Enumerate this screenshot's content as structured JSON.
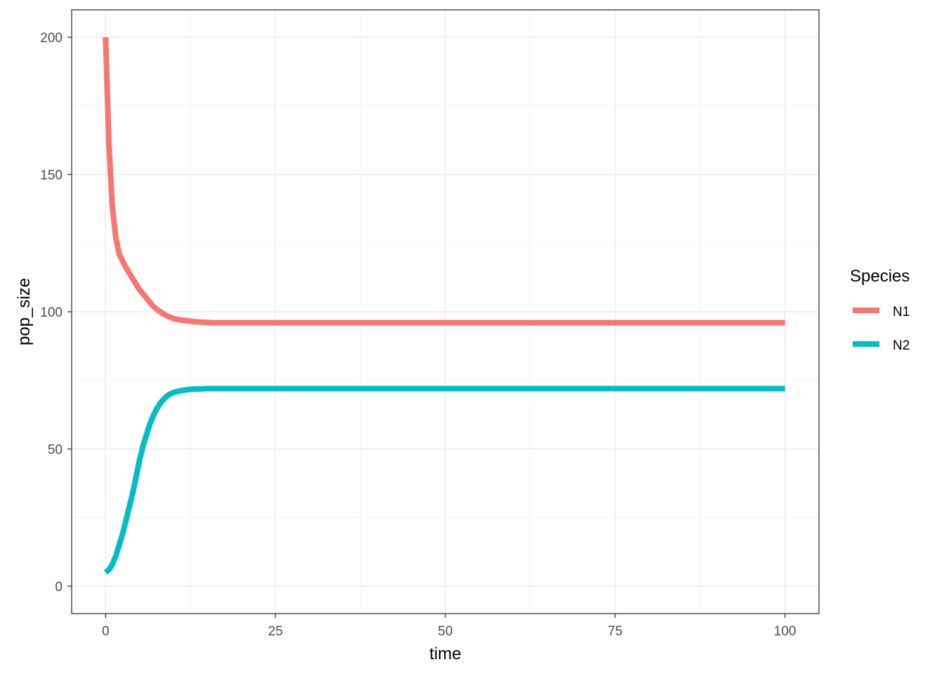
{
  "chart_data": {
    "type": "line",
    "xlabel": "time",
    "ylabel": "pop_size",
    "xlim": [
      -5,
      105
    ],
    "ylim": [
      -10,
      210
    ],
    "x_ticks": [
      0,
      25,
      50,
      75,
      100
    ],
    "y_ticks": [
      0,
      50,
      100,
      150,
      200
    ],
    "x_tick_labels": [
      "0",
      "25",
      "50",
      "75",
      "100"
    ],
    "y_tick_labels": [
      "0",
      "50",
      "100",
      "150",
      "200"
    ],
    "grid": true,
    "legend": {
      "title": "Species",
      "placement": "right"
    },
    "series": [
      {
        "name": "N1",
        "color": "#F8766D",
        "x": [
          0,
          0.5,
          1,
          1.5,
          2,
          3,
          4,
          5,
          6,
          7,
          8,
          9,
          10,
          11,
          12,
          13,
          14,
          15,
          16,
          18,
          20,
          25,
          30,
          40,
          50,
          60,
          70,
          80,
          90,
          100
        ],
        "y": [
          200,
          160,
          138,
          127,
          121,
          116,
          112,
          108,
          105,
          102,
          100,
          98.5,
          97.5,
          97,
          96.7,
          96.4,
          96.2,
          96.1,
          96,
          96,
          96,
          96,
          96,
          96,
          96,
          96,
          96,
          96,
          96,
          96
        ]
      },
      {
        "name": "N2",
        "color": "#00BFC4",
        "x": [
          0,
          0.5,
          1,
          1.5,
          2,
          2.5,
          3,
          3.5,
          4,
          4.5,
          5,
          5.5,
          6,
          6.5,
          7,
          7.5,
          8,
          8.5,
          9,
          9.5,
          10,
          11,
          12,
          13,
          14,
          15,
          16,
          18,
          20,
          25,
          30,
          40,
          50,
          60,
          70,
          80,
          90,
          100
        ],
        "y": [
          5,
          6,
          8,
          11,
          15,
          19,
          24,
          29,
          34,
          40,
          46,
          51,
          55,
          59,
          62,
          64.5,
          66.5,
          68,
          69.2,
          70,
          70.6,
          71.2,
          71.6,
          71.8,
          71.9,
          72,
          72,
          72,
          72,
          72,
          72,
          72,
          72,
          72,
          72,
          72,
          72,
          72
        ]
      }
    ]
  }
}
